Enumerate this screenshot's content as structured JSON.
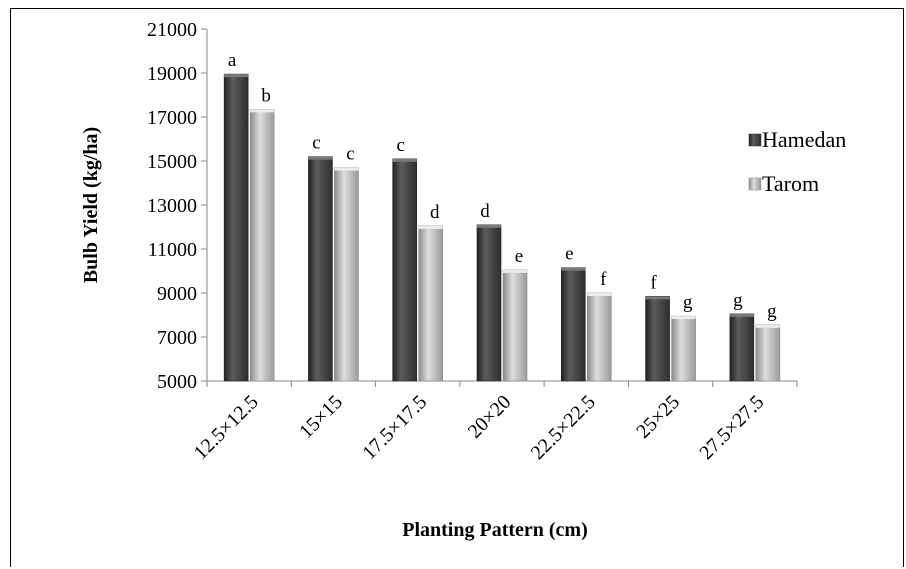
{
  "chart_data": {
    "type": "bar",
    "xlabel": "Planting Pattern (cm)",
    "ylabel": "Bulb Yield (kg/ha)",
    "ylim": [
      5000,
      21000
    ],
    "yticks": [
      "5000",
      "7000",
      "9000",
      "11000",
      "13000",
      "15000",
      "17000",
      "19000",
      "21000"
    ],
    "categories": [
      "12.5×12.5",
      "15×15",
      "17.5×17.5",
      "20×20",
      "22.5×22.5",
      "25×25",
      "27.5×27.5"
    ],
    "legend_position": "right",
    "series": [
      {
        "name": "Hamedan",
        "color": "#4a4a4a",
        "values": [
          18950,
          15200,
          15100,
          12100,
          10150,
          8850,
          8050
        ],
        "labels": [
          "a",
          "c",
          "c",
          "d",
          "e",
          "f",
          "g"
        ]
      },
      {
        "name": "Tarom",
        "color": "#c4c4c4",
        "values": [
          17350,
          14700,
          12050,
          10050,
          9000,
          7950,
          7550
        ],
        "labels": [
          "b",
          "c",
          "d",
          "e",
          "f",
          "g",
          "g"
        ]
      }
    ]
  }
}
